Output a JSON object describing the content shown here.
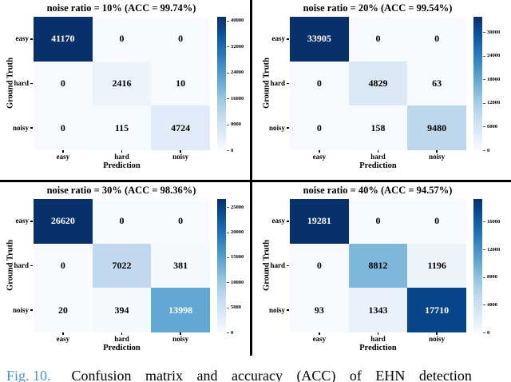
{
  "caption": {
    "label": "Fig. 10.",
    "label_color": "#4793d2",
    "text": "Confusion matrix and accuracy (ACC) of EHN detection"
  },
  "axes": {
    "xlabel": "Prediction",
    "ylabel": "Ground Truth",
    "x_categories": [
      "easy",
      "hard",
      "noisy"
    ],
    "y_categories": [
      "easy",
      "hard",
      "noisy"
    ]
  },
  "colors": {
    "colormap": "Blues",
    "colormap_stops": [
      "#f7fbff",
      "#deebf7",
      "#c6dbef",
      "#9ecae1",
      "#6baed6",
      "#4292c6",
      "#2171b5",
      "#08519c",
      "#08306b"
    ],
    "divider": "#000000",
    "annotation_on_dark": "#ffffff",
    "annotation_on_light": "#000000"
  },
  "chart_data": [
    {
      "type": "heatmap",
      "title": "noise ratio = 10% (ACC = 99.74%)",
      "xlabel": "Prediction",
      "ylabel": "Ground Truth",
      "x_categories": [
        "easy",
        "hard",
        "noisy"
      ],
      "y_categories": [
        "easy",
        "hard",
        "noisy"
      ],
      "values": [
        [
          41170,
          0,
          0
        ],
        [
          0,
          2416,
          10
        ],
        [
          0,
          115,
          4724
        ]
      ],
      "vmin": 0,
      "vmax": 41170,
      "colorbar_ticks": [
        40000,
        32000,
        24000,
        16000,
        8000,
        0
      ]
    },
    {
      "type": "heatmap",
      "title": "noise ratio = 20% (ACC = 99.54%)",
      "xlabel": "Prediction",
      "ylabel": "Ground Truth",
      "x_categories": [
        "easy",
        "hard",
        "noisy"
      ],
      "y_categories": [
        "easy",
        "hard",
        "noisy"
      ],
      "values": [
        [
          33905,
          0,
          0
        ],
        [
          0,
          4829,
          63
        ],
        [
          0,
          158,
          9480
        ]
      ],
      "vmin": 0,
      "vmax": 33905,
      "colorbar_ticks": [
        30000,
        24000,
        18000,
        12000,
        6000,
        0
      ]
    },
    {
      "type": "heatmap",
      "title": "noise ratio = 30% (ACC = 98.36%)",
      "xlabel": "Prediction",
      "ylabel": "Ground Truth",
      "x_categories": [
        "easy",
        "hard",
        "noisy"
      ],
      "y_categories": [
        "easy",
        "hard",
        "noisy"
      ],
      "values": [
        [
          26620,
          0,
          0
        ],
        [
          0,
          7022,
          381
        ],
        [
          20,
          394,
          13998
        ]
      ],
      "vmin": 0,
      "vmax": 26620,
      "colorbar_ticks": [
        25000,
        20000,
        15000,
        10000,
        5000,
        0
      ]
    },
    {
      "type": "heatmap",
      "title": "noise ratio = 40% (ACC = 94.57%)",
      "xlabel": "Prediction",
      "ylabel": "Ground Truth",
      "x_categories": [
        "easy",
        "hard",
        "noisy"
      ],
      "y_categories": [
        "easy",
        "hard",
        "noisy"
      ],
      "values": [
        [
          19281,
          0,
          0
        ],
        [
          0,
          8812,
          1196
        ],
        [
          93,
          1343,
          17710
        ]
      ],
      "vmin": 0,
      "vmax": 19281,
      "colorbar_ticks": [
        16000,
        12000,
        8000,
        4000,
        0
      ]
    }
  ]
}
